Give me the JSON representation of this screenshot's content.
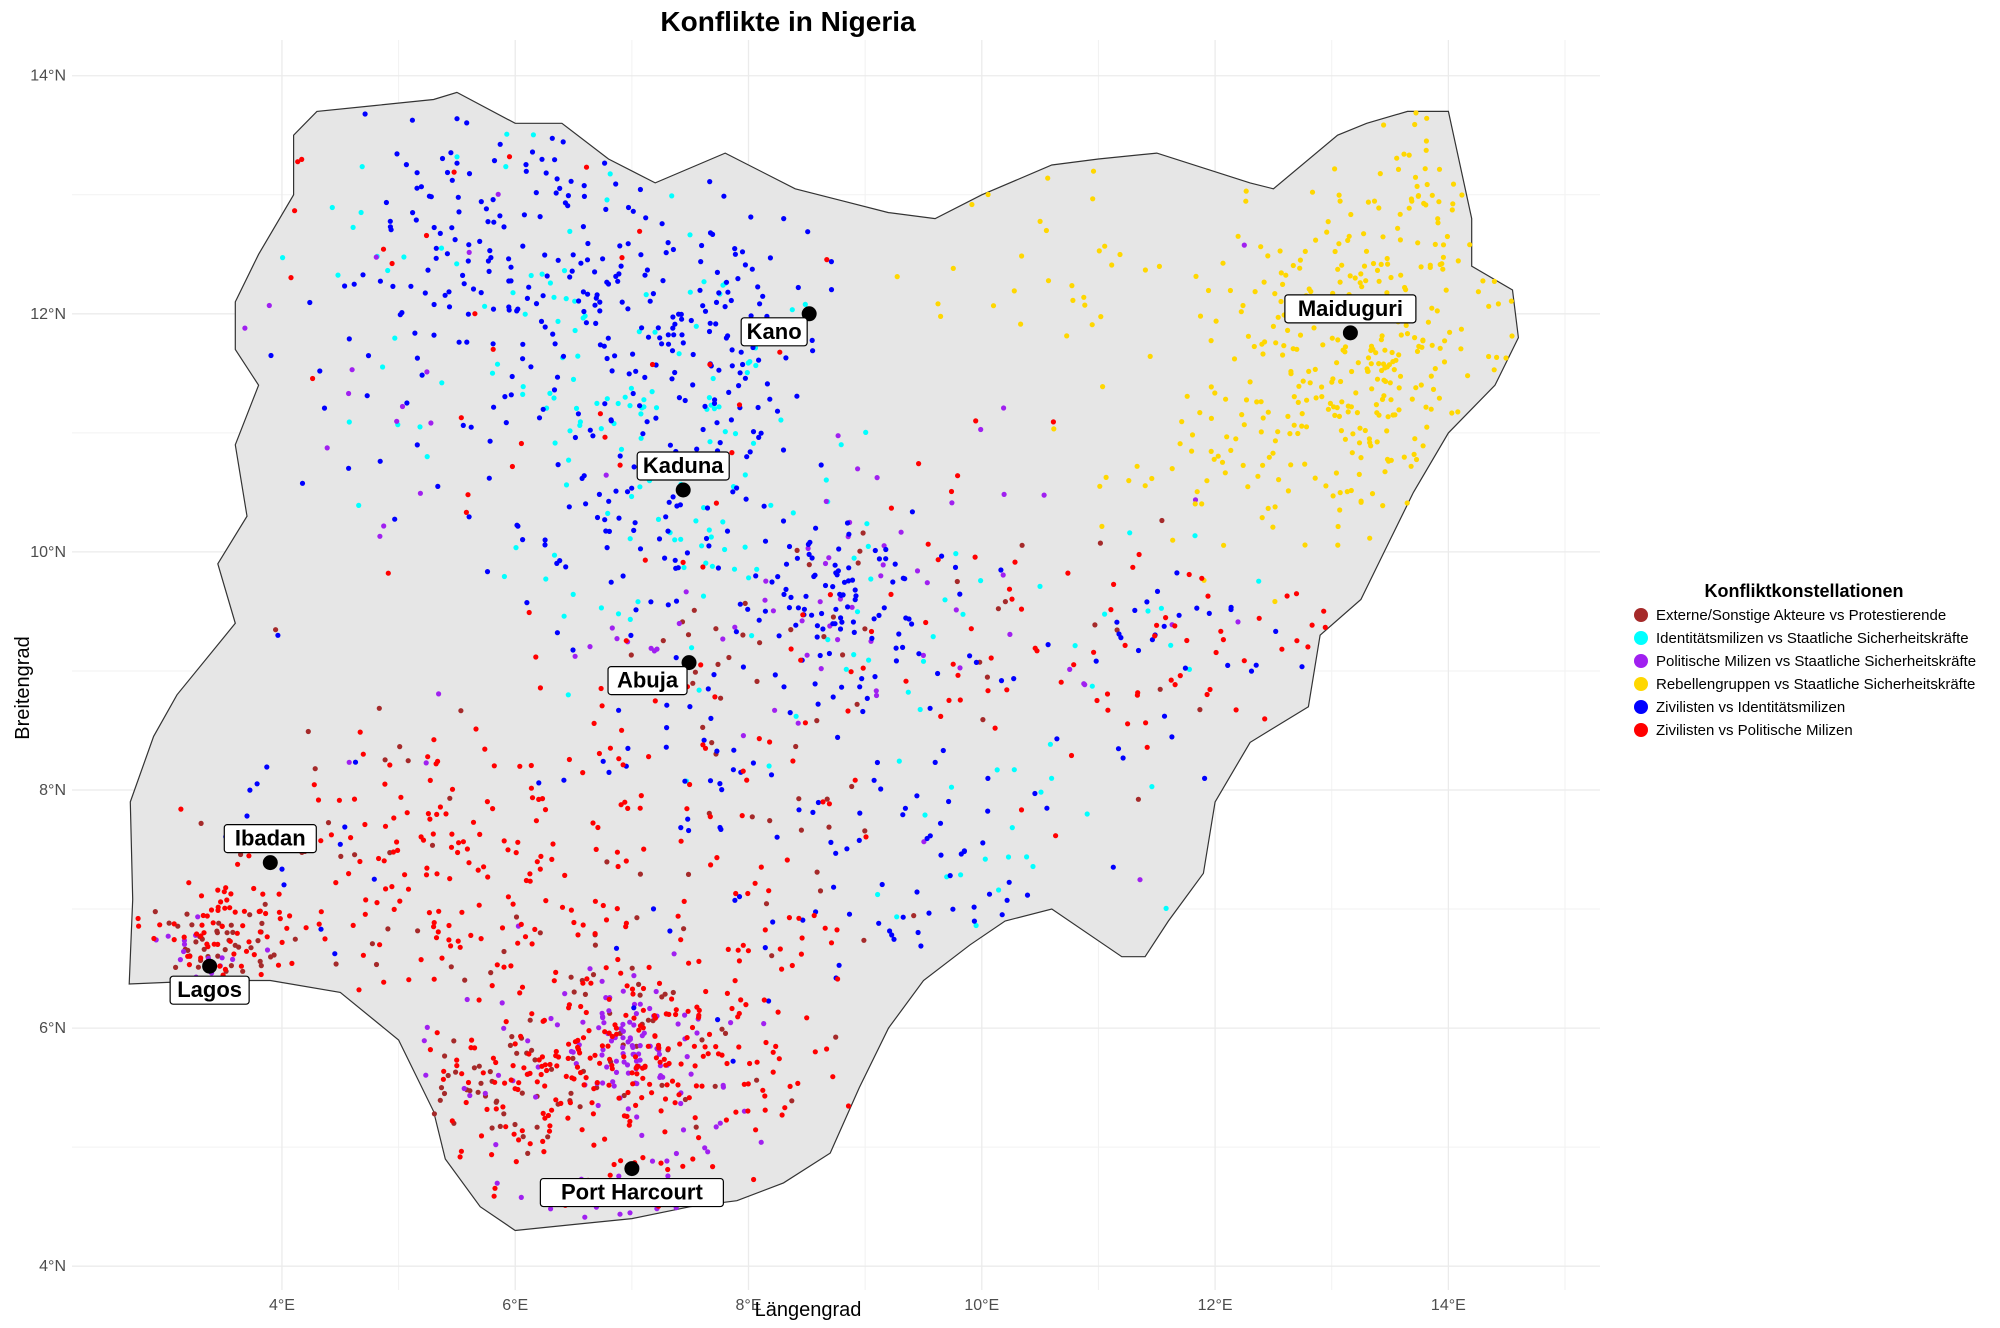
{
  "title": "Konflikte in Nigeria",
  "x_axis": {
    "label": "Längengrad",
    "ticks": [
      {
        "value": 4,
        "label": "4°E"
      },
      {
        "value": 6,
        "label": "6°E"
      },
      {
        "value": 8,
        "label": "8°E"
      },
      {
        "value": 10,
        "label": "10°E"
      },
      {
        "value": 12,
        "label": "12°E"
      },
      {
        "value": 14,
        "label": "14°E"
      }
    ]
  },
  "y_axis": {
    "label": "Breitengrad",
    "ticks": [
      {
        "value": 4,
        "label": "4°N"
      },
      {
        "value": 6,
        "label": "6°N"
      },
      {
        "value": 8,
        "label": "8°N"
      },
      {
        "value": 10,
        "label": "10°N"
      },
      {
        "value": 12,
        "label": "12°N"
      },
      {
        "value": 14,
        "label": "14°N"
      }
    ]
  },
  "legend": {
    "title": "Konfliktkonstellationen",
    "position": "right",
    "items": [
      {
        "label": "Externe/Sonstige Akteure vs Protestierende",
        "color": "#a52a2a"
      },
      {
        "label": "Identitätsmilizen vs Staatliche Sicherheitskräfte",
        "color": "#00ffff"
      },
      {
        "label": "Politische Milizen vs Staatliche Sicherheitskräfte",
        "color": "#a020f0"
      },
      {
        "label": "Rebellengruppen vs Staatliche Sicherheitskräfte",
        "color": "#ffd700"
      },
      {
        "label": "Zivilisten vs Identitätsmilizen",
        "color": "#0000ff"
      },
      {
        "label": "Zivilisten vs Politische Milizen",
        "color": "#ff0000"
      }
    ]
  },
  "map_style": {
    "country_fill": "#e6e6e6",
    "country_stroke": "#333333",
    "grid": true
  },
  "cities": [
    {
      "name": "Kano",
      "lon": 8.52,
      "lat": 12.0,
      "label_side": "below-left"
    },
    {
      "name": "Maiduguri",
      "lon": 13.16,
      "lat": 11.84,
      "label_side": "above"
    },
    {
      "name": "Kaduna",
      "lon": 7.44,
      "lat": 10.52,
      "label_side": "above"
    },
    {
      "name": "Abuja",
      "lon": 7.49,
      "lat": 9.07,
      "label_side": "below-left"
    },
    {
      "name": "Ibadan",
      "lon": 3.9,
      "lat": 7.39,
      "label_side": "above"
    },
    {
      "name": "Lagos",
      "lon": 3.38,
      "lat": 6.52,
      "label_side": "below"
    },
    {
      "name": "Port Harcourt",
      "lon": 7.0,
      "lat": 4.82,
      "label_side": "below"
    }
  ],
  "chart_data": {
    "type": "scatter",
    "title": "Konflikte in Nigeria",
    "xlabel": "Längengrad",
    "ylabel": "Breitengrad",
    "xlim": [
      2.2,
      15.3
    ],
    "ylim": [
      3.8,
      14.3
    ],
    "series": [
      {
        "name": "Externe/Sonstige Akteure vs Protestierende",
        "color": "#a52a2a",
        "clusters": [
          {
            "lon": 3.4,
            "lat": 6.6,
            "spread": 0.25,
            "n": 40
          },
          {
            "lon": 5.8,
            "lat": 5.5,
            "spread": 0.35,
            "n": 35
          },
          {
            "lon": 6.9,
            "lat": 6.0,
            "spread": 0.5,
            "n": 50
          },
          {
            "lon": 7.5,
            "lat": 9.1,
            "spread": 0.3,
            "n": 15
          },
          {
            "lon": 4.8,
            "lat": 7.5,
            "spread": 0.8,
            "n": 30
          },
          {
            "lon": 8.8,
            "lat": 9.6,
            "spread": 0.5,
            "n": 15
          },
          {
            "lon": 8.5,
            "lat": 7.6,
            "spread": 0.8,
            "n": 20
          },
          {
            "lon": 11.0,
            "lat": 9.2,
            "spread": 0.8,
            "n": 12
          }
        ]
      },
      {
        "name": "Identitätsmilizen vs Staatliche Sicherheitskräfte",
        "color": "#00ffff",
        "clusters": [
          {
            "lon": 7.0,
            "lat": 11.4,
            "spread": 0.8,
            "n": 70
          },
          {
            "lon": 6.0,
            "lat": 12.4,
            "spread": 0.9,
            "n": 40
          },
          {
            "lon": 7.5,
            "lat": 10.0,
            "spread": 0.7,
            "n": 40
          },
          {
            "lon": 9.0,
            "lat": 9.3,
            "spread": 0.8,
            "n": 20
          },
          {
            "lon": 9.8,
            "lat": 7.3,
            "spread": 0.6,
            "n": 18
          },
          {
            "lon": 10.8,
            "lat": 8.5,
            "spread": 0.7,
            "n": 12
          },
          {
            "lon": 12.0,
            "lat": 9.5,
            "spread": 0.4,
            "n": 8
          }
        ]
      },
      {
        "name": "Politische Milizen vs Staatliche Sicherheitskräfte",
        "color": "#a020f0",
        "clusters": [
          {
            "lon": 6.95,
            "lat": 5.9,
            "spread": 0.25,
            "n": 70
          },
          {
            "lon": 7.2,
            "lat": 5.4,
            "spread": 0.5,
            "n": 40
          },
          {
            "lon": 6.0,
            "lat": 5.6,
            "spread": 0.4,
            "n": 20
          },
          {
            "lon": 7.0,
            "lat": 4.6,
            "spread": 0.3,
            "n": 15
          },
          {
            "lon": 3.3,
            "lat": 6.6,
            "spread": 0.25,
            "n": 15
          },
          {
            "lon": 8.7,
            "lat": 9.7,
            "spread": 0.6,
            "n": 25
          },
          {
            "lon": 7.4,
            "lat": 9.0,
            "spread": 0.5,
            "n": 15
          },
          {
            "lon": 10.5,
            "lat": 10.0,
            "spread": 1.5,
            "n": 25
          },
          {
            "lon": 5.0,
            "lat": 11.0,
            "spread": 1.5,
            "n": 20
          }
        ]
      },
      {
        "name": "Rebellengruppen vs Staatliche Sicherheitskräfte",
        "color": "#ffd700",
        "clusters": [
          {
            "lon": 13.3,
            "lat": 11.6,
            "spread": 0.7,
            "n": 260
          },
          {
            "lon": 13.6,
            "lat": 12.9,
            "spread": 0.5,
            "n": 60
          },
          {
            "lon": 12.4,
            "lat": 10.8,
            "spread": 0.5,
            "n": 50
          },
          {
            "lon": 11.5,
            "lat": 12.3,
            "spread": 0.9,
            "n": 30
          },
          {
            "lon": 10.2,
            "lat": 12.3,
            "spread": 0.6,
            "n": 10
          }
        ]
      },
      {
        "name": "Zivilisten vs Identitätsmilizen",
        "color": "#0000ff",
        "clusters": [
          {
            "lon": 5.9,
            "lat": 12.8,
            "spread": 0.7,
            "n": 120
          },
          {
            "lon": 7.4,
            "lat": 12.0,
            "spread": 0.6,
            "n": 120
          },
          {
            "lon": 7.2,
            "lat": 10.5,
            "spread": 0.7,
            "n": 110
          },
          {
            "lon": 8.8,
            "lat": 9.6,
            "spread": 0.4,
            "n": 90
          },
          {
            "lon": 9.0,
            "lat": 7.6,
            "spread": 1.0,
            "n": 90
          },
          {
            "lon": 11.6,
            "lat": 9.2,
            "spread": 0.5,
            "n": 30
          },
          {
            "lon": 5.4,
            "lat": 11.5,
            "spread": 1.0,
            "n": 50
          },
          {
            "lon": 7.5,
            "lat": 8.6,
            "spread": 0.5,
            "n": 25
          },
          {
            "lon": 4.3,
            "lat": 7.6,
            "spread": 0.6,
            "n": 15
          }
        ]
      },
      {
        "name": "Zivilisten vs Politische Milizen",
        "color": "#ff0000",
        "clusters": [
          {
            "lon": 7.0,
            "lat": 5.7,
            "spread": 0.6,
            "n": 210
          },
          {
            "lon": 5.5,
            "lat": 7.5,
            "spread": 0.7,
            "n": 150
          },
          {
            "lon": 3.5,
            "lat": 6.8,
            "spread": 0.35,
            "n": 70
          },
          {
            "lon": 6.0,
            "lat": 5.4,
            "spread": 0.5,
            "n": 50
          },
          {
            "lon": 8.2,
            "lat": 6.4,
            "spread": 0.5,
            "n": 40
          },
          {
            "lon": 7.4,
            "lat": 8.3,
            "spread": 0.8,
            "n": 40
          },
          {
            "lon": 10.0,
            "lat": 9.0,
            "spread": 1.0,
            "n": 40
          },
          {
            "lon": 11.4,
            "lat": 9.2,
            "spread": 0.4,
            "n": 25
          },
          {
            "lon": 5.0,
            "lat": 11.8,
            "spread": 1.3,
            "n": 25
          },
          {
            "lon": 9.2,
            "lat": 10.8,
            "spread": 1.2,
            "n": 20
          },
          {
            "lon": 12.6,
            "lat": 9.5,
            "spread": 0.3,
            "n": 12
          }
        ]
      }
    ],
    "boundary": [
      [
        2.69,
        6.37
      ],
      [
        2.72,
        7.08
      ],
      [
        2.7,
        7.9
      ],
      [
        2.9,
        8.45
      ],
      [
        3.1,
        8.8
      ],
      [
        3.6,
        9.4
      ],
      [
        3.45,
        9.9
      ],
      [
        3.7,
        10.3
      ],
      [
        3.6,
        10.9
      ],
      [
        3.8,
        11.4
      ],
      [
        3.6,
        11.7
      ],
      [
        3.6,
        12.1
      ],
      [
        3.8,
        12.5
      ],
      [
        4.1,
        13.0
      ],
      [
        4.1,
        13.5
      ],
      [
        4.3,
        13.7
      ],
      [
        4.8,
        13.75
      ],
      [
        5.3,
        13.8
      ],
      [
        5.5,
        13.86
      ],
      [
        6.0,
        13.6
      ],
      [
        6.4,
        13.6
      ],
      [
        6.8,
        13.3
      ],
      [
        7.2,
        13.1
      ],
      [
        7.8,
        13.35
      ],
      [
        8.4,
        13.05
      ],
      [
        8.8,
        12.95
      ],
      [
        9.2,
        12.85
      ],
      [
        9.6,
        12.8
      ],
      [
        10.0,
        13.0
      ],
      [
        10.6,
        13.25
      ],
      [
        11.0,
        13.3
      ],
      [
        11.5,
        13.35
      ],
      [
        12.3,
        13.1
      ],
      [
        12.5,
        13.05
      ],
      [
        13.05,
        13.5
      ],
      [
        13.3,
        13.6
      ],
      [
        13.65,
        13.7
      ],
      [
        14.0,
        13.7
      ],
      [
        14.2,
        12.8
      ],
      [
        14.2,
        12.4
      ],
      [
        14.55,
        12.2
      ],
      [
        14.6,
        11.8
      ],
      [
        14.4,
        11.4
      ],
      [
        14.0,
        11.0
      ],
      [
        13.7,
        10.5
      ],
      [
        13.5,
        10.1
      ],
      [
        13.25,
        9.6
      ],
      [
        12.9,
        9.3
      ],
      [
        12.8,
        8.7
      ],
      [
        12.3,
        8.4
      ],
      [
        12.0,
        7.9
      ],
      [
        11.9,
        7.3
      ],
      [
        11.6,
        6.9
      ],
      [
        11.4,
        6.6
      ],
      [
        11.2,
        6.6
      ],
      [
        10.6,
        7.0
      ],
      [
        10.2,
        6.9
      ],
      [
        9.9,
        6.7
      ],
      [
        9.5,
        6.4
      ],
      [
        9.2,
        6.0
      ],
      [
        8.95,
        5.5
      ],
      [
        8.7,
        4.95
      ],
      [
        8.3,
        4.7
      ],
      [
        7.9,
        4.55
      ],
      [
        7.5,
        4.5
      ],
      [
        7.0,
        4.4
      ],
      [
        6.5,
        4.35
      ],
      [
        6.0,
        4.3
      ],
      [
        5.7,
        4.5
      ],
      [
        5.4,
        4.9
      ],
      [
        5.3,
        5.3
      ],
      [
        5.0,
        5.9
      ],
      [
        4.5,
        6.3
      ],
      [
        3.9,
        6.4
      ],
      [
        3.4,
        6.4
      ],
      [
        2.69,
        6.37
      ]
    ]
  }
}
